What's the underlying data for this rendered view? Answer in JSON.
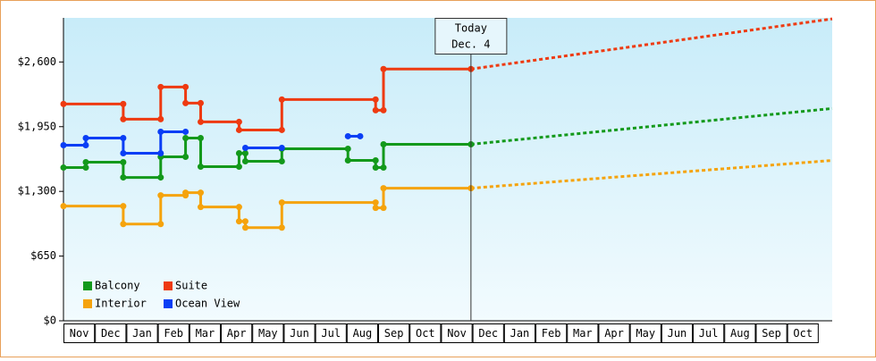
{
  "chart_data": {
    "type": "line",
    "categories": [
      "Nov",
      "Dec",
      "Jan",
      "Feb",
      "Mar",
      "Apr",
      "May",
      "Jun",
      "Jul",
      "Aug",
      "Sep",
      "Oct",
      "Nov",
      "Dec",
      "Jan",
      "Feb",
      "Mar",
      "Apr",
      "May",
      "Jun",
      "Jul",
      "Aug",
      "Sep",
      "Oct"
    ],
    "xlim": [
      0,
      24.43
    ],
    "ylim": [
      0,
      3043
    ],
    "yticks": [
      {
        "value": 0,
        "label": "$0"
      },
      {
        "value": 650,
        "label": "$650"
      },
      {
        "value": 1300,
        "label": "$1,300"
      },
      {
        "value": 1950,
        "label": "$1,950"
      },
      {
        "value": 2600,
        "label": "$2,600"
      }
    ],
    "annotation": {
      "text": [
        "Today",
        "Dec. 4"
      ],
      "x": 12.95
    },
    "legend": "lower left",
    "series": [
      {
        "name": "Balcony",
        "color": "#13991b",
        "x": [
          0,
          0.71,
          0.71,
          1.9,
          1.9,
          3.09,
          3.09,
          3.88,
          3.88,
          4.36,
          4.36,
          5.58,
          5.58,
          5.78,
          5.78,
          6.94,
          6.94,
          9.04,
          9.04,
          9.92,
          9.92,
          10.17,
          10.17,
          12.95
        ],
        "values": [
          1539,
          1539,
          1593,
          1593,
          1440,
          1440,
          1647,
          1647,
          1836,
          1836,
          1548,
          1548,
          1683,
          1683,
          1602,
          1602,
          1728,
          1728,
          1611,
          1611,
          1539,
          1539,
          1773,
          1773
        ],
        "forecast": {
          "x": [
            12.95,
            24.43
          ],
          "values": [
            1773,
            2133
          ]
        }
      },
      {
        "name": "Suite",
        "color": "#ee3a11",
        "x": [
          0,
          1.9,
          1.9,
          3.09,
          3.09,
          3.88,
          3.88,
          4.36,
          4.36,
          5.58,
          5.58,
          6.94,
          6.94,
          9.92,
          9.92,
          10.17,
          10.17,
          12.95
        ],
        "values": [
          2178,
          2178,
          2025,
          2025,
          2349,
          2349,
          2187,
          2187,
          1998,
          1998,
          1917,
          1917,
          2223,
          2223,
          2115,
          2115,
          2529,
          2529
        ],
        "forecast": {
          "x": [
            12.95,
            24.43
          ],
          "values": [
            2529,
            3033
          ]
        }
      },
      {
        "name": "Interior",
        "color": "#f5a30c",
        "x": [
          0,
          1.9,
          1.9,
          3.09,
          3.09,
          3.88,
          3.88,
          4.36,
          4.36,
          5.58,
          5.58,
          5.78,
          5.78,
          6.94,
          6.94,
          9.92,
          9.92,
          10.17,
          10.17,
          12.95
        ],
        "values": [
          1152,
          1152,
          972,
          972,
          1260,
          1260,
          1287,
          1287,
          1143,
          1143,
          999,
          999,
          936,
          936,
          1188,
          1188,
          1134,
          1134,
          1332,
          1332
        ],
        "forecast": {
          "x": [
            12.95,
            24.43
          ],
          "values": [
            1332,
            1611
          ]
        }
      },
      {
        "name": "Ocean View",
        "color": "#0a3ef5",
        "x": [
          0,
          0.71,
          0.71,
          1.9,
          1.9,
          3.09,
          3.09,
          3.88,
          null,
          5.78,
          6.94,
          null,
          9.04,
          9.43
        ],
        "values": [
          1764,
          1764,
          1836,
          1836,
          1683,
          1683,
          1899,
          1899,
          null,
          1737,
          1737,
          null,
          1854,
          1854
        ]
      }
    ]
  }
}
